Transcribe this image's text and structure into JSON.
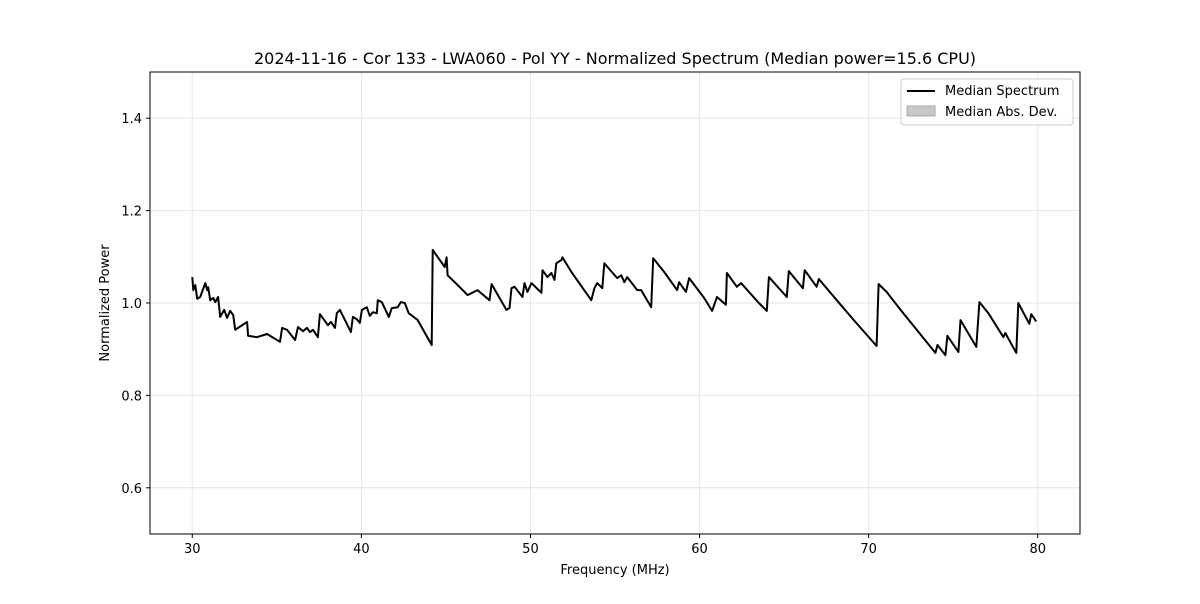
{
  "chart_data": {
    "type": "line",
    "title": "2024-11-16 - Cor 133 - LWA060 - Pol YY - Normalized Spectrum (Median power=15.6 CPU)",
    "xlabel": "Frequency (MHz)",
    "ylabel": "Normalized Power",
    "xlim": [
      27.5,
      82.5
    ],
    "ylim": [
      0.5,
      1.5
    ],
    "xticks": [
      30,
      40,
      50,
      60,
      70,
      80
    ],
    "xtick_labels": [
      "30",
      "40",
      "50",
      "60",
      "70",
      "80"
    ],
    "yticks": [
      0.6,
      0.8,
      1.0,
      1.2,
      1.4
    ],
    "ytick_labels": [
      "0.6",
      "0.8",
      "1.0",
      "1.2",
      "1.4"
    ],
    "grid": true,
    "legend": {
      "placement": "top-right",
      "entries": [
        {
          "label": "Median Spectrum",
          "kind": "line",
          "color": "#000000"
        },
        {
          "label": "Median Abs. Dev.",
          "kind": "patch",
          "color": "#c8c8c8"
        }
      ]
    },
    "series": [
      {
        "name": "Median Spectrum",
        "color": "#000000",
        "x": [
          30.0,
          30.06,
          30.18,
          30.29,
          30.47,
          30.77,
          30.88,
          30.94,
          31.06,
          31.24,
          31.36,
          31.53,
          31.65,
          31.89,
          32.06,
          32.24,
          32.42,
          32.54,
          33.24,
          33.3,
          33.83,
          34.42,
          35.19,
          35.31,
          35.6,
          36.08,
          36.25,
          36.55,
          36.78,
          36.96,
          37.14,
          37.43,
          37.55,
          38.02,
          38.2,
          38.44,
          38.55,
          38.73,
          39.38,
          39.5,
          39.73,
          39.91,
          40.03,
          40.32,
          40.5,
          40.68,
          40.91,
          40.97,
          41.21,
          41.62,
          41.8,
          42.15,
          42.33,
          42.57,
          42.8,
          43.33,
          44.16,
          44.22,
          44.93,
          45.04,
          45.1,
          45.69,
          46.28,
          46.87,
          47.58,
          47.7,
          48.58,
          48.76,
          48.88,
          49.06,
          49.53,
          49.65,
          49.82,
          50.06,
          50.65,
          50.71,
          51.0,
          51.24,
          51.42,
          51.53,
          51.83,
          51.89,
          52.42,
          53.6,
          53.78,
          53.95,
          54.25,
          54.37,
          55.13,
          55.37,
          55.55,
          55.72,
          56.31,
          56.55,
          57.14,
          57.26,
          57.91,
          58.67,
          58.79,
          59.2,
          59.38,
          60.27,
          60.74,
          61.03,
          61.56,
          61.62,
          62.21,
          62.45,
          63.51,
          63.98,
          64.1,
          65.16,
          65.28,
          66.11,
          66.22,
          66.93,
          67.05,
          68.35,
          69.12,
          70.47,
          70.59,
          71.06,
          71.89,
          73.95,
          74.07,
          74.54,
          74.66,
          75.31,
          75.43,
          76.37,
          76.55,
          77.08,
          77.97,
          78.08,
          78.73,
          78.85,
          79.5,
          79.62,
          79.91
        ],
        "y": [
          1.056,
          1.028,
          1.039,
          1.009,
          1.013,
          1.043,
          1.028,
          1.034,
          1.006,
          1.011,
          1.002,
          1.013,
          0.97,
          0.985,
          0.968,
          0.983,
          0.974,
          0.942,
          0.959,
          0.929,
          0.926,
          0.933,
          0.916,
          0.946,
          0.942,
          0.92,
          0.948,
          0.939,
          0.946,
          0.937,
          0.942,
          0.926,
          0.976,
          0.952,
          0.959,
          0.946,
          0.978,
          0.985,
          0.937,
          0.97,
          0.965,
          0.957,
          0.985,
          0.991,
          0.972,
          0.98,
          0.978,
          1.006,
          1.002,
          0.97,
          0.989,
          0.991,
          1.002,
          1.0,
          0.978,
          0.963,
          0.909,
          1.115,
          1.078,
          1.099,
          1.06,
          1.039,
          1.017,
          1.028,
          1.006,
          1.041,
          0.985,
          0.989,
          1.032,
          1.035,
          1.013,
          1.043,
          1.024,
          1.043,
          1.022,
          1.071,
          1.056,
          1.065,
          1.05,
          1.086,
          1.093,
          1.099,
          1.067,
          1.006,
          1.032,
          1.043,
          1.032,
          1.086,
          1.054,
          1.06,
          1.045,
          1.056,
          1.028,
          1.028,
          0.991,
          1.097,
          1.067,
          1.028,
          1.045,
          1.024,
          1.054,
          1.011,
          0.983,
          1.013,
          0.996,
          1.065,
          1.035,
          1.043,
          1.0,
          0.983,
          1.056,
          1.013,
          1.069,
          1.032,
          1.071,
          1.035,
          1.052,
          0.996,
          0.963,
          0.907,
          1.041,
          1.024,
          0.985,
          0.892,
          0.909,
          0.887,
          0.929,
          0.894,
          0.963,
          0.905,
          1.002,
          0.978,
          0.926,
          0.935,
          0.892,
          1.0,
          0.955,
          0.976,
          0.96
        ]
      }
    ]
  }
}
